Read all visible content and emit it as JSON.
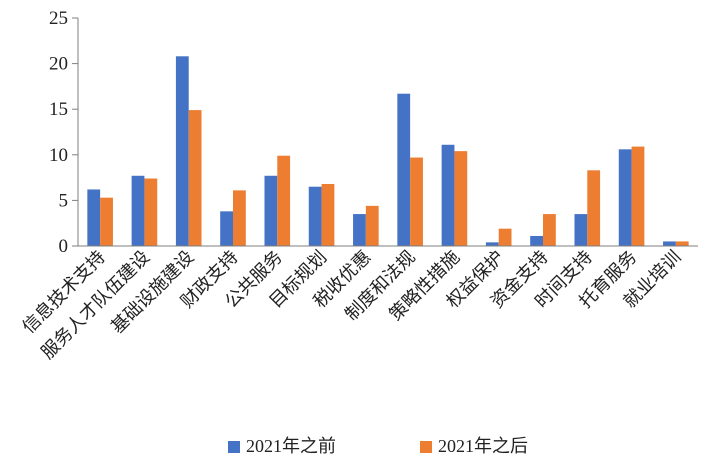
{
  "chart_data": {
    "type": "bar",
    "title": "",
    "xlabel": "",
    "ylabel": "",
    "ylim": [
      0,
      25
    ],
    "yticks": [
      0,
      5,
      10,
      15,
      20,
      25
    ],
    "grid": false,
    "legend_position": "bottom",
    "categories": [
      "信息技术支持",
      "服务人才队伍建设",
      "基础设施建设",
      "财政支持",
      "公共服务",
      "目标规划",
      "税收优惠",
      "制度和法规",
      "策略性措施",
      "权益保护",
      "资金支持",
      "时间支持",
      "托育服务",
      "就业培训"
    ],
    "series": [
      {
        "name": "2021年之前",
        "color": "#4472C4",
        "values": [
          6.2,
          7.7,
          20.8,
          3.8,
          7.7,
          6.5,
          3.5,
          16.7,
          11.1,
          0.4,
          1.1,
          3.5,
          10.6,
          0.5
        ]
      },
      {
        "name": "2021年之后",
        "color": "#ED7D31",
        "values": [
          5.3,
          7.4,
          14.9,
          6.1,
          9.9,
          6.8,
          4.4,
          9.7,
          10.4,
          1.9,
          3.5,
          8.3,
          10.9,
          0.5
        ]
      }
    ]
  }
}
